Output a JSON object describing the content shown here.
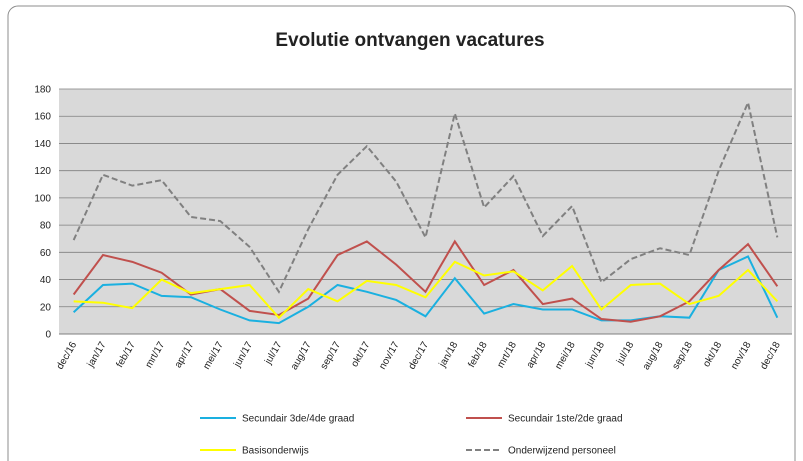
{
  "chart_data": {
    "type": "line",
    "title": "Evolutie ontvangen vacatures",
    "categories": [
      "dec/16",
      "jan/17",
      "feb/17",
      "mrt/17",
      "apr/17",
      "mei/17",
      "jun/17",
      "jul/17",
      "aug/17",
      "sep/17",
      "okt/17",
      "nov/17",
      "dec/17",
      "jan/18",
      "feb/18",
      "mrt/18",
      "apr/18",
      "mei/18",
      "jun/18",
      "jul/18",
      "aug/18",
      "sep/18",
      "okt/18",
      "nov/18",
      "dec/18"
    ],
    "series": [
      {
        "name": "Secundair 3de/4de graad",
        "color": "#1ab0e0",
        "values": [
          16,
          36,
          37,
          28,
          27,
          18,
          10,
          8,
          20,
          36,
          31,
          25,
          13,
          41,
          15,
          22,
          18,
          18,
          10,
          10,
          13,
          12,
          47,
          57,
          12
        ]
      },
      {
        "name": "Secundair 1ste/2de graad",
        "color": "#c0504d",
        "values": [
          29,
          58,
          53,
          45,
          29,
          33,
          17,
          14,
          26,
          58,
          68,
          51,
          31,
          68,
          36,
          47,
          22,
          26,
          11,
          9,
          13,
          24,
          47,
          66,
          35
        ]
      },
      {
        "name": "Basisonderwijs",
        "color": "#ffff00",
        "values": [
          24,
          23,
          19,
          40,
          30,
          33,
          36,
          12,
          33,
          24,
          39,
          36,
          27,
          53,
          43,
          46,
          32,
          50,
          18,
          36,
          37,
          22,
          28,
          47,
          24
        ]
      },
      {
        "name": "Onderwijzend personeel",
        "color": "#808080",
        "dashed": true,
        "values": [
          69,
          117,
          109,
          113,
          86,
          83,
          64,
          31,
          77,
          117,
          138,
          112,
          71,
          162,
          93,
          116,
          72,
          94,
          38,
          55,
          63,
          58,
          120,
          170,
          71
        ]
      }
    ],
    "ylim": [
      0,
      180
    ],
    "yticks": [
      0,
      20,
      40,
      60,
      80,
      100,
      120,
      140,
      160,
      180
    ],
    "grid": true,
    "legend": "bottom"
  }
}
